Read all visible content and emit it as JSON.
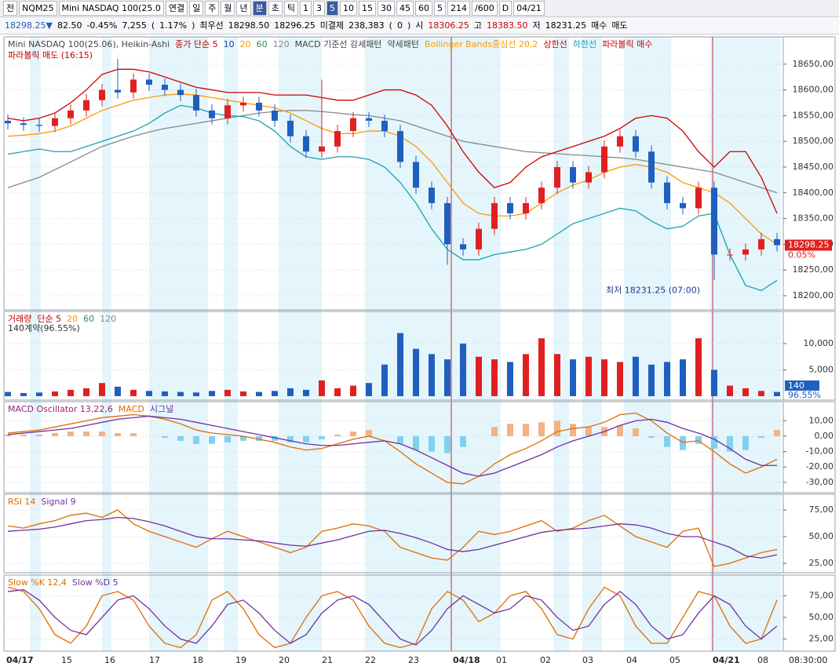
{
  "toolbar": {
    "row1": [
      "전",
      "NQM25",
      "Mini NASDAQ 100(25.0",
      "연결",
      "일",
      "주",
      "월",
      "년",
      "분",
      "초",
      "틱",
      "1",
      "3",
      "5",
      "10",
      "15",
      "30",
      "45",
      "60",
      "5",
      "214",
      "/600",
      "D",
      "04/21"
    ],
    "row2": [
      "18298.25▼",
      "82.50",
      "-0.45%",
      "7,255",
      "(",
      "1.17%",
      ")",
      "최우선",
      "18298.50",
      "18296.25",
      "미결제",
      "238,383",
      "(",
      "0",
      ")",
      "시",
      "18306.25",
      "고",
      "18383.50",
      "저",
      "18231.25",
      "매수",
      "매도"
    ]
  },
  "chart_data": [
    {
      "type": "candlestick",
      "panel": "price",
      "legend": [
        {
          "text": "Mini NASDAQ 100(25.06), Heikin-Ashi",
          "color": "#444444"
        },
        {
          "text": "종가 단순 5",
          "color": "#c00000"
        },
        {
          "text": "10",
          "color": "#1f3a93"
        },
        {
          "text": "20",
          "color": "#ff9900"
        },
        {
          "text": "60",
          "color": "#2e8b57"
        },
        {
          "text": "120",
          "color": "#888888"
        },
        {
          "text": "MACD 기준선 강세패턴",
          "color": "#444444"
        },
        {
          "text": "약세패턴",
          "color": "#444444"
        },
        {
          "text": "Bollinger Bands중심선 20,2",
          "color": "#ff9900"
        },
        {
          "text": "상한선",
          "color": "#d00000"
        },
        {
          "text": "하한선",
          "color": "#1aa3b0"
        },
        {
          "text": "파라볼릭 매수",
          "color": "#d00000"
        }
      ],
      "legend2": "파라볼릭 매도 (16:15)",
      "up_color": "#e02020",
      "down_color": "#1f5fbf",
      "open": [
        18540,
        18535,
        18532,
        18530,
        18545,
        18560,
        18580,
        18600,
        18595,
        18620,
        18610,
        18600,
        18590,
        18560,
        18545,
        18570,
        18575,
        18560,
        18540,
        18510,
        18480,
        18490,
        18520,
        18545,
        18540,
        18520,
        18460,
        18410,
        18380,
        18300,
        18290,
        18330,
        18380,
        18360,
        18380,
        18410,
        18450,
        18420,
        18440,
        18490,
        18510,
        18480,
        18420,
        18380,
        18370,
        18410,
        18280,
        18280,
        18290,
        18310
      ],
      "high": [
        18552,
        18547,
        18544,
        18557,
        18572,
        18592,
        18612,
        18660,
        18632,
        18632,
        18622,
        18612,
        18602,
        18572,
        18582,
        18587,
        18587,
        18572,
        18552,
        18522,
        18620,
        18532,
        18557,
        18557,
        18552,
        18532,
        18472,
        18422,
        18392,
        18312,
        18342,
        18392,
        18392,
        18392,
        18422,
        18462,
        18462,
        18452,
        18502,
        18522,
        18522,
        18492,
        18432,
        18392,
        18422,
        18422,
        18292,
        18302,
        18322,
        18322
      ],
      "low": [
        18523,
        18520,
        18518,
        18518,
        18533,
        18548,
        18568,
        18583,
        18583,
        18598,
        18588,
        18578,
        18548,
        18533,
        18533,
        18558,
        18548,
        18528,
        18498,
        18468,
        18468,
        18478,
        18508,
        18528,
        18508,
        18448,
        18398,
        18368,
        18260,
        18278,
        18278,
        18318,
        18348,
        18348,
        18368,
        18398,
        18408,
        18408,
        18428,
        18478,
        18468,
        18408,
        18368,
        18358,
        18358,
        18231.25,
        18268,
        18268,
        18278,
        18286
      ],
      "close": [
        18535,
        18532,
        18530,
        18545,
        18560,
        18580,
        18600,
        18595,
        18620,
        18610,
        18600,
        18590,
        18560,
        18545,
        18570,
        18575,
        18560,
        18540,
        18510,
        18480,
        18490,
        18520,
        18545,
        18540,
        18520,
        18460,
        18410,
        18380,
        18300,
        18290,
        18330,
        18380,
        18360,
        18380,
        18410,
        18450,
        18420,
        18440,
        18490,
        18510,
        18480,
        18420,
        18380,
        18370,
        18410,
        18280,
        18280,
        18290,
        18310,
        18298.25
      ],
      "series": [
        {
          "color": "#888888",
          "values": [
            18410,
            18420,
            18430,
            18445,
            18460,
            18475,
            18490,
            18500,
            18510,
            18518,
            18525,
            18530,
            18535,
            18540,
            18545,
            18550,
            18555,
            18558,
            18560,
            18560,
            18558,
            18555,
            18552,
            18550,
            18545,
            18540,
            18530,
            18520,
            18510,
            18500,
            18495,
            18490,
            18485,
            18480,
            18478,
            18476,
            18474,
            18472,
            18470,
            18468,
            18465,
            18460,
            18455,
            18450,
            18445,
            18440,
            18430,
            18420,
            18410,
            18400
          ]
        },
        {
          "color": "#d00000",
          "values": [
            18545,
            18540,
            18545,
            18555,
            18575,
            18600,
            18630,
            18640,
            18640,
            18635,
            18625,
            18615,
            18605,
            18600,
            18595,
            18595,
            18595,
            18590,
            18590,
            18590,
            18585,
            18580,
            18580,
            18590,
            18600,
            18600,
            18590,
            18570,
            18530,
            18480,
            18440,
            18410,
            18420,
            18450,
            18470,
            18480,
            18490,
            18500,
            18510,
            18525,
            18545,
            18550,
            18545,
            18520,
            18480,
            18450,
            18480,
            18480,
            18430,
            18360
          ]
        },
        {
          "color": "#ff9900",
          "values": [
            18510,
            18512,
            18515,
            18520,
            18530,
            18545,
            18560,
            18570,
            18580,
            18585,
            18590,
            18592,
            18590,
            18585,
            18580,
            18575,
            18570,
            18565,
            18555,
            18540,
            18525,
            18515,
            18515,
            18520,
            18520,
            18510,
            18490,
            18460,
            18420,
            18380,
            18360,
            18355,
            18355,
            18360,
            18380,
            18400,
            18415,
            18425,
            18440,
            18450,
            18455,
            18450,
            18440,
            18420,
            18410,
            18400,
            18380,
            18350,
            18320,
            18300
          ]
        },
        {
          "color": "#1aa3b0",
          "values": [
            18475,
            18480,
            18485,
            18480,
            18480,
            18490,
            18500,
            18510,
            18520,
            18535,
            18555,
            18570,
            18565,
            18555,
            18550,
            18548,
            18540,
            18520,
            18490,
            18470,
            18465,
            18470,
            18470,
            18465,
            18450,
            18420,
            18380,
            18330,
            18290,
            18270,
            18270,
            18280,
            18285,
            18290,
            18300,
            18320,
            18340,
            18350,
            18360,
            18370,
            18365,
            18345,
            18330,
            18335,
            18355,
            18360,
            18280,
            18220,
            18210,
            18230
          ]
        }
      ],
      "ylim": [
        18172.5,
        18703
      ],
      "yticks": [
        {
          "value": 18200,
          "label": "18200,00"
        },
        {
          "value": 18250,
          "label": "18250,00"
        },
        {
          "value": 18300,
          "label": "18300,00"
        },
        {
          "value": 18350,
          "label": "18350,00"
        },
        {
          "value": 18400,
          "label": "18400,00"
        },
        {
          "value": 18450,
          "label": "18450,00"
        },
        {
          "value": 18500,
          "label": "18500,00"
        },
        {
          "value": 18550,
          "label": "18550,00"
        },
        {
          "value": 18600,
          "label": "18600,00"
        },
        {
          "value": 18650,
          "label": "18650,00"
        }
      ],
      "last_label": "18298.25",
      "change_label": "0.05%",
      "low_annotation": "최저 18231.25 (07:00)"
    },
    {
      "type": "bar",
      "panel": "volume",
      "legend": [
        {
          "text": "거래량",
          "color": "#c00000"
        },
        {
          "text": "단순 5",
          "color": "#c00000"
        },
        {
          "text": "20",
          "color": "#ff9900"
        },
        {
          "text": "60",
          "color": "#2e8b57"
        },
        {
          "text": "120",
          "color": "#888888"
        }
      ],
      "legend2": "140계약(96.55%)",
      "values": [
        800,
        600,
        700,
        900,
        1200,
        1500,
        2500,
        1800,
        1200,
        1000,
        900,
        800,
        700,
        1000,
        1200,
        900,
        800,
        1000,
        1500,
        1200,
        3000,
        1500,
        2000,
        2500,
        6000,
        12000,
        9000,
        8000,
        7000,
        10000,
        7500,
        7000,
        6500,
        8000,
        11000,
        8000,
        7000,
        7500,
        7000,
        6500,
        7500,
        6000,
        6500,
        7000,
        11000,
        5000,
        2000,
        1500,
        1000,
        800
      ],
      "ylim": [
        -750,
        16100
      ],
      "yticks": [
        {
          "value": 5000,
          "label": "5,000"
        },
        {
          "value": 10000,
          "label": "10,000"
        }
      ],
      "box_label": "140",
      "pct_label": "96.55%"
    },
    {
      "type": "macd",
      "panel": "macd",
      "legend": [
        {
          "text": "MACD Oscillator 13,22,6",
          "color": "#a0207a"
        },
        {
          "text": "MACD",
          "color": "#e06c00"
        },
        {
          "text": "시그널",
          "color": "#7030a0"
        }
      ],
      "oscillator": [
        1,
        1,
        1,
        2,
        3,
        3,
        3,
        2,
        2,
        0,
        -1,
        -3,
        -5,
        -5,
        -4,
        -3,
        -3,
        -3,
        -4,
        -4,
        -2,
        1,
        3,
        4,
        0,
        -5,
        -9,
        -10,
        -11,
        -7,
        0,
        6,
        8,
        8,
        9,
        10,
        8,
        6,
        6,
        7,
        5,
        -1,
        -7,
        -9,
        -5,
        -8,
        -10,
        -9,
        -1,
        4
      ],
      "series": [
        {
          "color": "#e06c00",
          "values": [
            2,
            3,
            4,
            6,
            8,
            10,
            12,
            13,
            14,
            13,
            11,
            8,
            4,
            2,
            1,
            0,
            -2,
            -4,
            -7,
            -9,
            -8,
            -5,
            -2,
            0,
            -3,
            -10,
            -18,
            -24,
            -30,
            -31,
            -26,
            -18,
            -12,
            -8,
            -3,
            3,
            5,
            6,
            9,
            14,
            15,
            10,
            2,
            -4,
            -3,
            -10,
            -18,
            -24,
            -20,
            -15
          ]
        },
        {
          "color": "#7030a0",
          "values": [
            1,
            2,
            3,
            4,
            5,
            7,
            9,
            11,
            12,
            13,
            12,
            11,
            9,
            7,
            5,
            3,
            1,
            -1,
            -3,
            -5,
            -6,
            -6,
            -5,
            -4,
            -3,
            -5,
            -9,
            -14,
            -19,
            -24,
            -26,
            -24,
            -20,
            -16,
            -12,
            -7,
            -3,
            0,
            3,
            7,
            10,
            11,
            9,
            5,
            2,
            -2,
            -8,
            -15,
            -19,
            -19
          ]
        }
      ],
      "ylim": [
        -36.7,
        22.4
      ],
      "yticks": [
        {
          "value": -30,
          "label": "-30,00"
        },
        {
          "value": -20,
          "label": "-20,00"
        },
        {
          "value": -10,
          "label": "-10,00"
        },
        {
          "value": 0,
          "label": "0,00"
        },
        {
          "value": 10,
          "label": "10,00"
        }
      ]
    },
    {
      "type": "line",
      "panel": "rsi",
      "legend": [
        {
          "text": "RSI 14",
          "color": "#e06c00"
        },
        {
          "text": "Signal 9",
          "color": "#7030a0"
        }
      ],
      "series": [
        {
          "color": "#e06c00",
          "values": [
            60,
            58,
            62,
            65,
            70,
            72,
            68,
            75,
            62,
            55,
            50,
            45,
            40,
            48,
            55,
            50,
            45,
            40,
            35,
            40,
            55,
            58,
            62,
            60,
            55,
            40,
            35,
            30,
            28,
            40,
            55,
            52,
            55,
            60,
            65,
            55,
            58,
            65,
            70,
            60,
            50,
            45,
            40,
            55,
            58,
            22,
            25,
            30,
            35,
            38
          ]
        },
        {
          "color": "#7030a0",
          "values": [
            55,
            56,
            57,
            59,
            62,
            65,
            66,
            68,
            67,
            64,
            60,
            55,
            50,
            48,
            48,
            47,
            46,
            44,
            42,
            41,
            44,
            47,
            51,
            55,
            56,
            53,
            49,
            44,
            38,
            36,
            38,
            42,
            46,
            50,
            54,
            56,
            57,
            58,
            60,
            62,
            61,
            58,
            53,
            50,
            50,
            45,
            40,
            32,
            30,
            33
          ]
        }
      ],
      "ylim": [
        16.2,
        89.7
      ],
      "yticks": [
        {
          "value": 25,
          "label": "25,00"
        },
        {
          "value": 50,
          "label": "50,00"
        },
        {
          "value": 75,
          "label": "75,00"
        }
      ]
    },
    {
      "type": "line",
      "panel": "slow",
      "legend": [
        {
          "text": "Slow %K 12,4",
          "color": "#e06c00"
        },
        {
          "text": "Slow %D 5",
          "color": "#7030a0"
        }
      ],
      "series": [
        {
          "color": "#e06c00",
          "values": [
            85,
            80,
            60,
            30,
            20,
            40,
            75,
            80,
            70,
            40,
            20,
            15,
            30,
            70,
            80,
            60,
            30,
            15,
            20,
            50,
            75,
            80,
            70,
            40,
            20,
            15,
            20,
            60,
            80,
            70,
            45,
            55,
            75,
            80,
            60,
            30,
            25,
            60,
            85,
            75,
            40,
            20,
            20,
            50,
            80,
            75,
            40,
            20,
            25,
            70
          ]
        },
        {
          "color": "#7030a0",
          "values": [
            80,
            82,
            70,
            50,
            35,
            30,
            50,
            70,
            75,
            60,
            40,
            25,
            20,
            40,
            65,
            70,
            55,
            35,
            20,
            30,
            55,
            70,
            75,
            65,
            45,
            25,
            18,
            35,
            60,
            75,
            65,
            55,
            60,
            75,
            70,
            50,
            35,
            40,
            65,
            80,
            65,
            40,
            25,
            30,
            55,
            75,
            65,
            40,
            25,
            40
          ]
        }
      ],
      "ylim": [
        10.9,
        99
      ],
      "yticks": [
        {
          "value": 25,
          "label": "25,00"
        },
        {
          "value": 50,
          "label": "50,00"
        },
        {
          "value": 75,
          "label": "75,00"
        }
      ]
    }
  ],
  "x_axis": {
    "labels": [
      "04/17",
      "15",
      "16",
      "17",
      "18",
      "19",
      "20",
      "21",
      "22",
      "23",
      "04/18",
      "01",
      "02",
      "03",
      "04",
      "05",
      "04/21",
      "08"
    ],
    "time": "08:30:00"
  }
}
